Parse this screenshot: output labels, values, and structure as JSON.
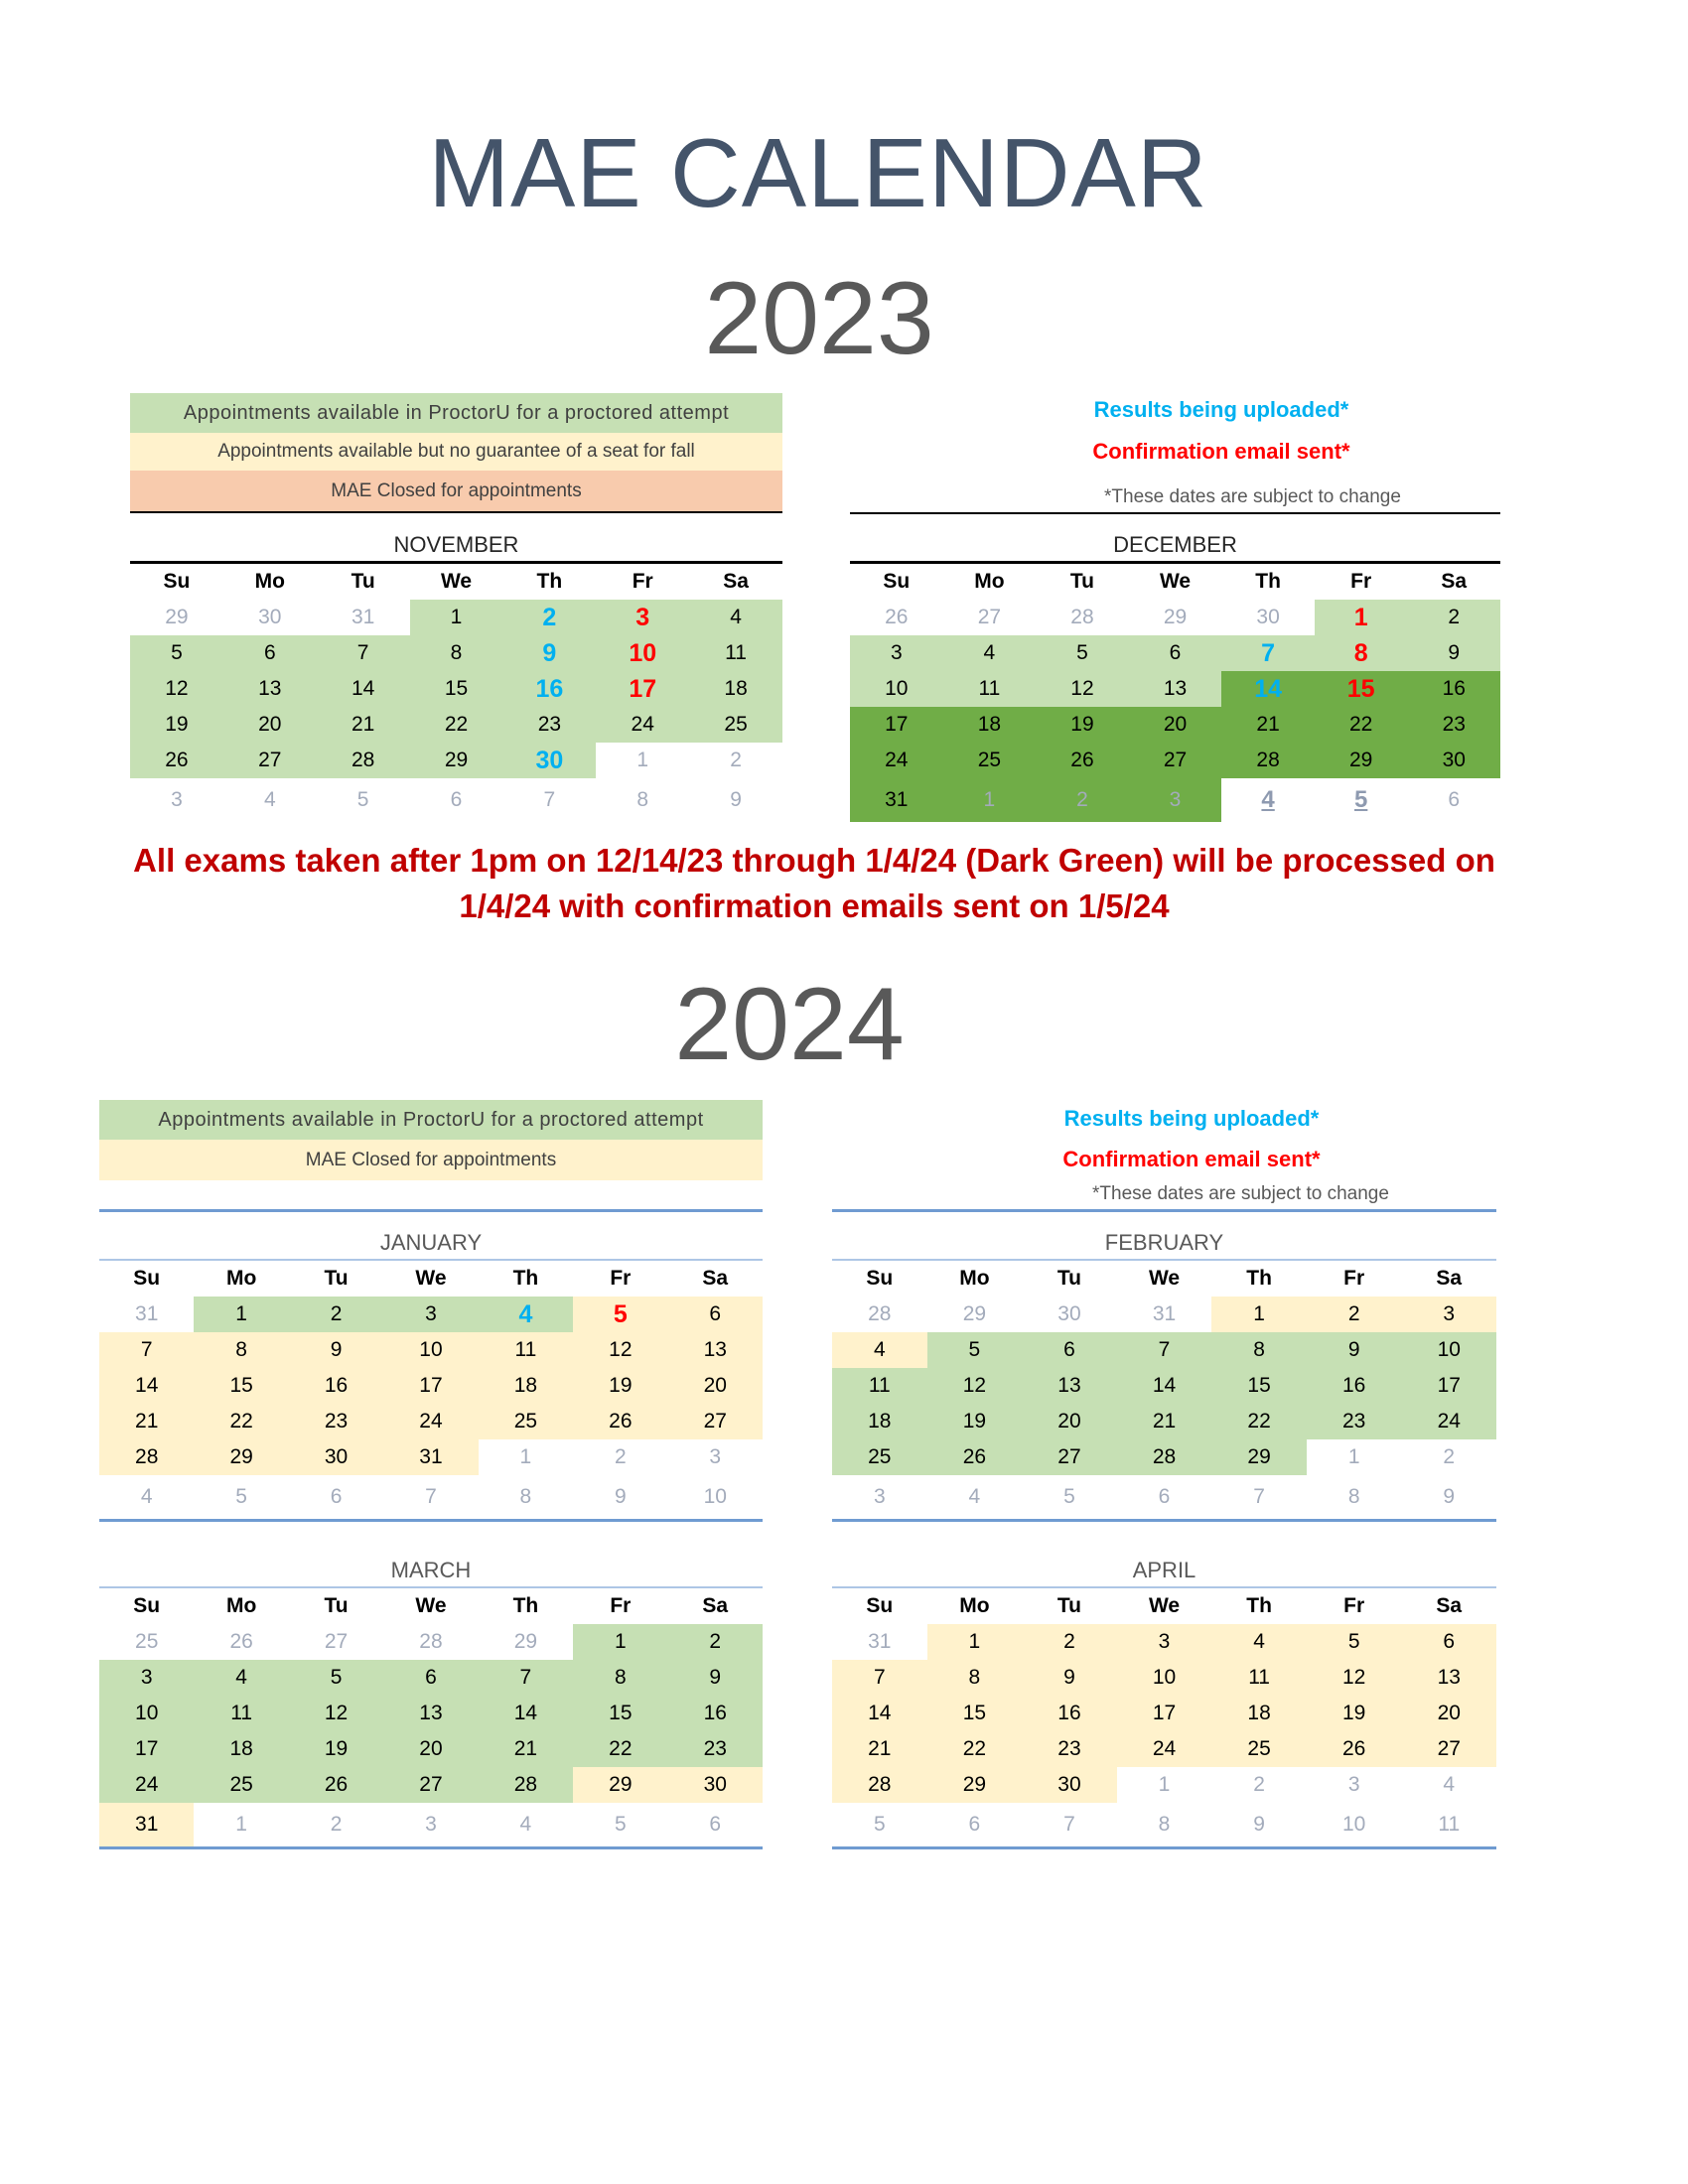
{
  "title": "MAE CALENDAR",
  "year_2023": "2023",
  "year_2024": "2024",
  "colors": {
    "light_green": "#c6e0b4",
    "dark_green": "#70ad47",
    "yellow": "#fff2cc",
    "orange": "#f8cbad",
    "blue": "#00b0f0",
    "red": "#ff0000"
  },
  "legend_2023": [
    "Appointments available in ProctorU for a proctored attempt",
    "Appointments available but no guarantee of a seat for fall",
    "MAE Closed for appointments"
  ],
  "legend_2024": [
    "Appointments available in ProctorU for a proctored attempt",
    "MAE Closed for appointments"
  ],
  "notes": {
    "uploaded": "Results being uploaded*",
    "email": "Confirmation email sent*",
    "subject": "*These dates are subject to change"
  },
  "red_message": [
    "All exams taken after 1pm on 12/14/23 through 1/4/24 (Dark Green) will be processed on",
    "1/4/24 with confirmation emails sent on 1/5/24"
  ],
  "weekdays": [
    "Su",
    "Mo",
    "Tu",
    "We",
    "Th",
    "Fr",
    "Sa"
  ],
  "months": {
    "nov": {
      "name": "NOVEMBER",
      "weeks": [
        [
          "29",
          "30",
          "31",
          "1",
          "2",
          "3",
          "4"
        ],
        [
          "5",
          "6",
          "7",
          "8",
          "9",
          "10",
          "11"
        ],
        [
          "12",
          "13",
          "14",
          "15",
          "16",
          "17",
          "18"
        ],
        [
          "19",
          "20",
          "21",
          "22",
          "23",
          "24",
          "25"
        ],
        [
          "26",
          "27",
          "28",
          "29",
          "30",
          "1",
          "2"
        ],
        [
          "3",
          "4",
          "5",
          "6",
          "7",
          "8",
          "9"
        ]
      ],
      "fill": [
        "WWWLLLL",
        "LLLLLLL",
        "LLLLLLL",
        "LLLLLLL",
        "LLLLLWW",
        "WWWWWWW"
      ],
      "text": [
        "mmm-br-",
        "----br-",
        "----br-",
        "-------",
        "----bmm",
        "mmmmmmm"
      ]
    },
    "dec": {
      "name": "DECEMBER",
      "weeks": [
        [
          "26",
          "27",
          "28",
          "29",
          "30",
          "1",
          "2"
        ],
        [
          "3",
          "4",
          "5",
          "6",
          "7",
          "8",
          "9"
        ],
        [
          "10",
          "11",
          "12",
          "13",
          "14",
          "15",
          "16"
        ],
        [
          "17",
          "18",
          "19",
          "20",
          "21",
          "22",
          "23"
        ],
        [
          "24",
          "25",
          "26",
          "27",
          "28",
          "29",
          "30"
        ],
        [
          "31",
          "1",
          "2",
          "3",
          "4",
          "5",
          "6"
        ]
      ],
      "fill": [
        "WWWWWLL",
        "LLLLLLL",
        "LLLLDDD",
        "DDDDDDD",
        "DDDDDDD",
        "DDDDWWW"
      ],
      "text": [
        "mmmmmr-",
        "----br-",
        "----br-",
        "-------",
        "-------",
        "-mmmuum"
      ]
    },
    "jan": {
      "name": "JANUARY",
      "weeks": [
        [
          "31",
          "1",
          "2",
          "3",
          "4",
          "5",
          "6"
        ],
        [
          "7",
          "8",
          "9",
          "10",
          "11",
          "12",
          "13"
        ],
        [
          "14",
          "15",
          "16",
          "17",
          "18",
          "19",
          "20"
        ],
        [
          "21",
          "22",
          "23",
          "24",
          "25",
          "26",
          "27"
        ],
        [
          "28",
          "29",
          "30",
          "31",
          "1",
          "2",
          "3"
        ],
        [
          "4",
          "5",
          "6",
          "7",
          "8",
          "9",
          "10"
        ]
      ],
      "fill": [
        "WLLLLYY",
        "YYYYYYY",
        "YYYYYYY",
        "YYYYYYY",
        "YYYYWWW",
        "WWWWWWW"
      ],
      "text": [
        "m---br-",
        "-------",
        "-------",
        "-------",
        "----mmm",
        "mmmmmmm"
      ]
    },
    "feb": {
      "name": "FEBRUARY",
      "weeks": [
        [
          "28",
          "29",
          "30",
          "31",
          "1",
          "2",
          "3"
        ],
        [
          "4",
          "5",
          "6",
          "7",
          "8",
          "9",
          "10"
        ],
        [
          "11",
          "12",
          "13",
          "14",
          "15",
          "16",
          "17"
        ],
        [
          "18",
          "19",
          "20",
          "21",
          "22",
          "23",
          "24"
        ],
        [
          "25",
          "26",
          "27",
          "28",
          "29",
          "1",
          "2"
        ],
        [
          "3",
          "4",
          "5",
          "6",
          "7",
          "8",
          "9"
        ]
      ],
      "fill": [
        "WWWWYYY",
        "YLLLLLL",
        "LLLLLLL",
        "LLLLLLL",
        "LLLLLWW",
        "WWWWWWW"
      ],
      "text": [
        "mmmm---",
        "-------",
        "-------",
        "-------",
        "-----mm",
        "mmmmmmm"
      ]
    },
    "mar": {
      "name": "MARCH",
      "weeks": [
        [
          "25",
          "26",
          "27",
          "28",
          "29",
          "1",
          "2"
        ],
        [
          "3",
          "4",
          "5",
          "6",
          "7",
          "8",
          "9"
        ],
        [
          "10",
          "11",
          "12",
          "13",
          "14",
          "15",
          "16"
        ],
        [
          "17",
          "18",
          "19",
          "20",
          "21",
          "22",
          "23"
        ],
        [
          "24",
          "25",
          "26",
          "27",
          "28",
          "29",
          "30"
        ],
        [
          "31",
          "1",
          "2",
          "3",
          "4",
          "5",
          "6"
        ]
      ],
      "fill": [
        "WWWWWLL",
        "LLLLLLL",
        "LLLLLLL",
        "LLLLLLL",
        "LLLLLYY",
        "YWWWWWW"
      ],
      "text": [
        "mmmmm--",
        "-------",
        "-------",
        "-------",
        "-------",
        "-mmmmmm"
      ]
    },
    "apr": {
      "name": "APRIL",
      "weeks": [
        [
          "31",
          "1",
          "2",
          "3",
          "4",
          "5",
          "6"
        ],
        [
          "7",
          "8",
          "9",
          "10",
          "11",
          "12",
          "13"
        ],
        [
          "14",
          "15",
          "16",
          "17",
          "18",
          "19",
          "20"
        ],
        [
          "21",
          "22",
          "23",
          "24",
          "25",
          "26",
          "27"
        ],
        [
          "28",
          "29",
          "30",
          "1",
          "2",
          "3",
          "4"
        ],
        [
          "5",
          "6",
          "7",
          "8",
          "9",
          "10",
          "11"
        ]
      ],
      "fill": [
        "WYYYYYY",
        "YYYYYYY",
        "YYYYYYY",
        "YYYYYYY",
        "YYYWWWW",
        "WWWWWWW"
      ],
      "text": [
        "m------",
        "-------",
        "-------",
        "-------",
        "---mmmm",
        "mmmmmmm"
      ]
    }
  }
}
